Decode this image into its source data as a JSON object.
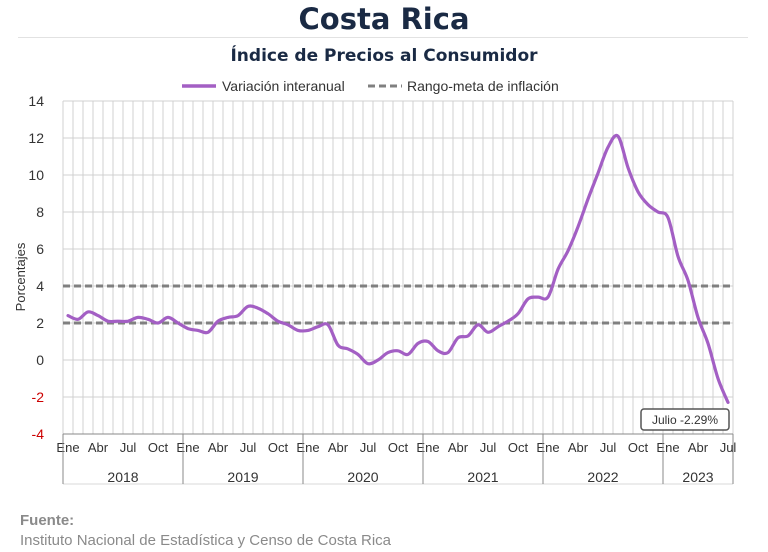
{
  "header": {
    "title": "Costa Rica",
    "subtitle": "Índice de Precios al Consumidor"
  },
  "source": {
    "label": "Fuente:",
    "text": "Instituto Nacional de Estadística y Censo de Costa Rica"
  },
  "colors": {
    "series": "#a35fc4",
    "target": "#808080",
    "grid": "#d0d0d0",
    "axis_text": "#333333",
    "negative_tick": "#cc0000"
  },
  "chart_data": {
    "type": "line",
    "ylabel": "Porcentajes",
    "ylim": [
      -4,
      14
    ],
    "yticks": [
      -4,
      -2,
      0,
      2,
      4,
      6,
      8,
      10,
      12,
      14
    ],
    "grid": true,
    "legend_position": "top-center",
    "x_month_labels": [
      "Ene",
      "Abr",
      "Jul",
      "Oct"
    ],
    "years": [
      "2018",
      "2019",
      "2020",
      "2021",
      "2022",
      "2023"
    ],
    "last_year_months": [
      "Ene",
      "Abr",
      "Jul"
    ],
    "series": [
      {
        "name": "Variación interanual",
        "style": "solid",
        "x": [
          "2018-01",
          "2018-02",
          "2018-03",
          "2018-04",
          "2018-05",
          "2018-06",
          "2018-07",
          "2018-08",
          "2018-09",
          "2018-10",
          "2018-11",
          "2018-12",
          "2019-01",
          "2019-02",
          "2019-03",
          "2019-04",
          "2019-05",
          "2019-06",
          "2019-07",
          "2019-08",
          "2019-09",
          "2019-10",
          "2019-11",
          "2019-12",
          "2020-01",
          "2020-02",
          "2020-03",
          "2020-04",
          "2020-05",
          "2020-06",
          "2020-07",
          "2020-08",
          "2020-09",
          "2020-10",
          "2020-11",
          "2020-12",
          "2021-01",
          "2021-02",
          "2021-03",
          "2021-04",
          "2021-05",
          "2021-06",
          "2021-07",
          "2021-08",
          "2021-09",
          "2021-10",
          "2021-11",
          "2021-12",
          "2022-01",
          "2022-02",
          "2022-03",
          "2022-04",
          "2022-05",
          "2022-06",
          "2022-07",
          "2022-08",
          "2022-09",
          "2022-10",
          "2022-11",
          "2022-12",
          "2023-01",
          "2023-02",
          "2023-03",
          "2023-04",
          "2023-05",
          "2023-06",
          "2023-07"
        ],
        "values": [
          2.4,
          2.2,
          2.6,
          2.4,
          2.1,
          2.1,
          2.1,
          2.3,
          2.2,
          2.0,
          2.3,
          2.0,
          1.7,
          1.6,
          1.5,
          2.1,
          2.3,
          2.4,
          2.9,
          2.8,
          2.5,
          2.1,
          1.9,
          1.6,
          1.6,
          1.8,
          1.9,
          0.8,
          0.6,
          0.3,
          -0.2,
          0.0,
          0.4,
          0.5,
          0.3,
          0.9,
          1.0,
          0.5,
          0.4,
          1.2,
          1.3,
          1.9,
          1.5,
          1.8,
          2.1,
          2.5,
          3.3,
          3.4,
          3.4,
          4.9,
          5.9,
          7.2,
          8.7,
          10.1,
          11.5,
          12.1,
          10.4,
          9.1,
          8.4,
          8.0,
          7.7,
          5.6,
          4.3,
          2.3,
          0.9,
          -1.0,
          -2.29
        ]
      },
      {
        "name": "Rango-meta de inflación",
        "style": "dashed",
        "bounds": [
          2,
          4
        ]
      }
    ],
    "annotation": "Julio -2.29%"
  }
}
